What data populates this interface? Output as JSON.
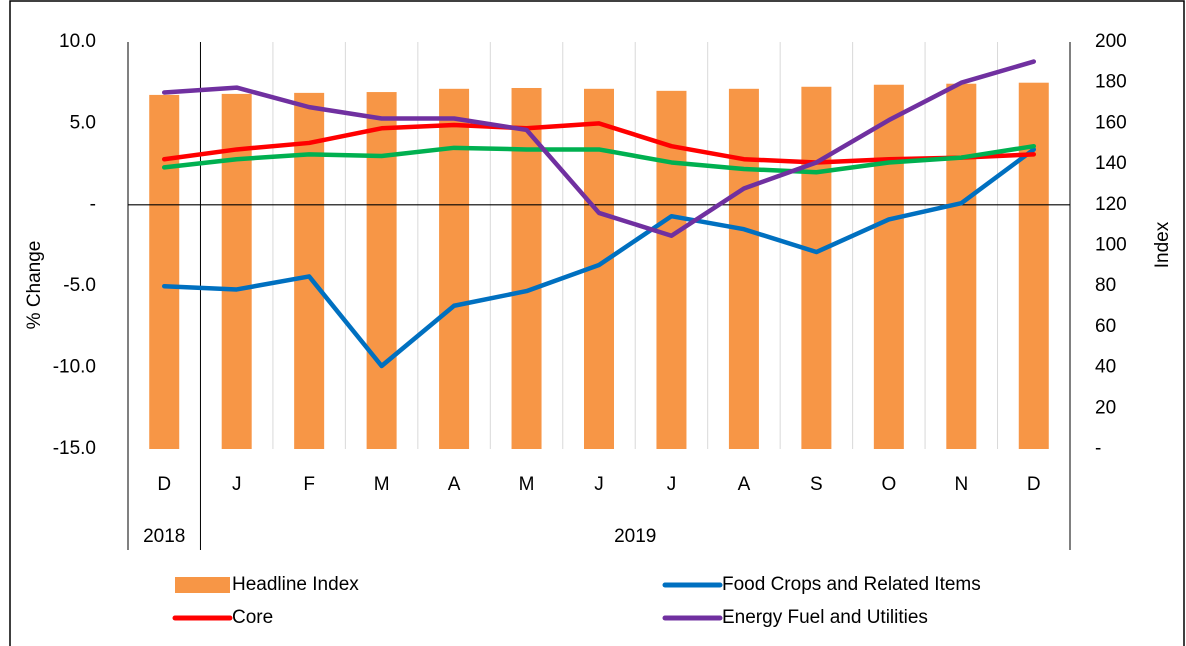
{
  "chart_data": {
    "type": "bar-line",
    "categories": [
      "D",
      "J",
      "F",
      "M",
      "A",
      "M",
      "J",
      "J",
      "A",
      "S",
      "O",
      "N",
      "D"
    ],
    "x_groups": [
      {
        "label": "2018",
        "span": 1
      },
      {
        "label": "2019",
        "span": 12
      }
    ],
    "ylabel": "% Change",
    "y2label": "Index",
    "ylim": [
      -15,
      10
    ],
    "yticks": [
      {
        "value": 10,
        "label": "10.0"
      },
      {
        "value": 5,
        "label": "5.0"
      },
      {
        "value": 0,
        "label": "-"
      },
      {
        "value": -5,
        "label": "-5.0"
      },
      {
        "value": -10,
        "label": "-10.0"
      },
      {
        "value": -15,
        "label": "-15.0"
      }
    ],
    "y2lim": [
      0,
      200
    ],
    "y2ticks": [
      200,
      180,
      160,
      140,
      120,
      100,
      80,
      60,
      40,
      20,
      {
        "value": 0,
        "label": "-"
      }
    ],
    "grid": false,
    "series": [
      {
        "name": "Headline Index",
        "type": "bar",
        "axis": "y2",
        "color": "#f79646",
        "values": [
          174,
          174.5,
          175,
          175.4,
          177,
          177.4,
          177,
          176,
          177,
          178,
          179,
          179.5,
          180
        ]
      },
      {
        "name": "Food Crops and Related Items",
        "type": "line",
        "color": "#0070c0",
        "values": [
          -5.0,
          -5.2,
          -4.4,
          -9.9,
          -6.2,
          -5.3,
          -3.7,
          -0.7,
          -1.5,
          -2.9,
          -0.9,
          0.1,
          3.4
        ]
      },
      {
        "name": "Core",
        "type": "line",
        "color": "#ff0000",
        "values": [
          2.8,
          3.4,
          3.8,
          4.7,
          4.9,
          4.7,
          5.0,
          3.6,
          2.8,
          2.6,
          2.8,
          2.9,
          3.1
        ]
      },
      {
        "name": null,
        "type": "line",
        "color": "#00b050",
        "values": [
          2.3,
          2.8,
          3.1,
          3.0,
          3.5,
          3.4,
          3.4,
          2.6,
          2.2,
          2.0,
          2.6,
          2.9,
          3.6
        ]
      },
      {
        "name": "Energy Fuel and Utilities",
        "type": "line",
        "color": "#7030a0",
        "values": [
          6.9,
          7.2,
          6.0,
          5.3,
          5.3,
          4.6,
          -0.5,
          -1.9,
          1.0,
          2.6,
          5.2,
          7.5,
          8.8
        ]
      }
    ]
  }
}
